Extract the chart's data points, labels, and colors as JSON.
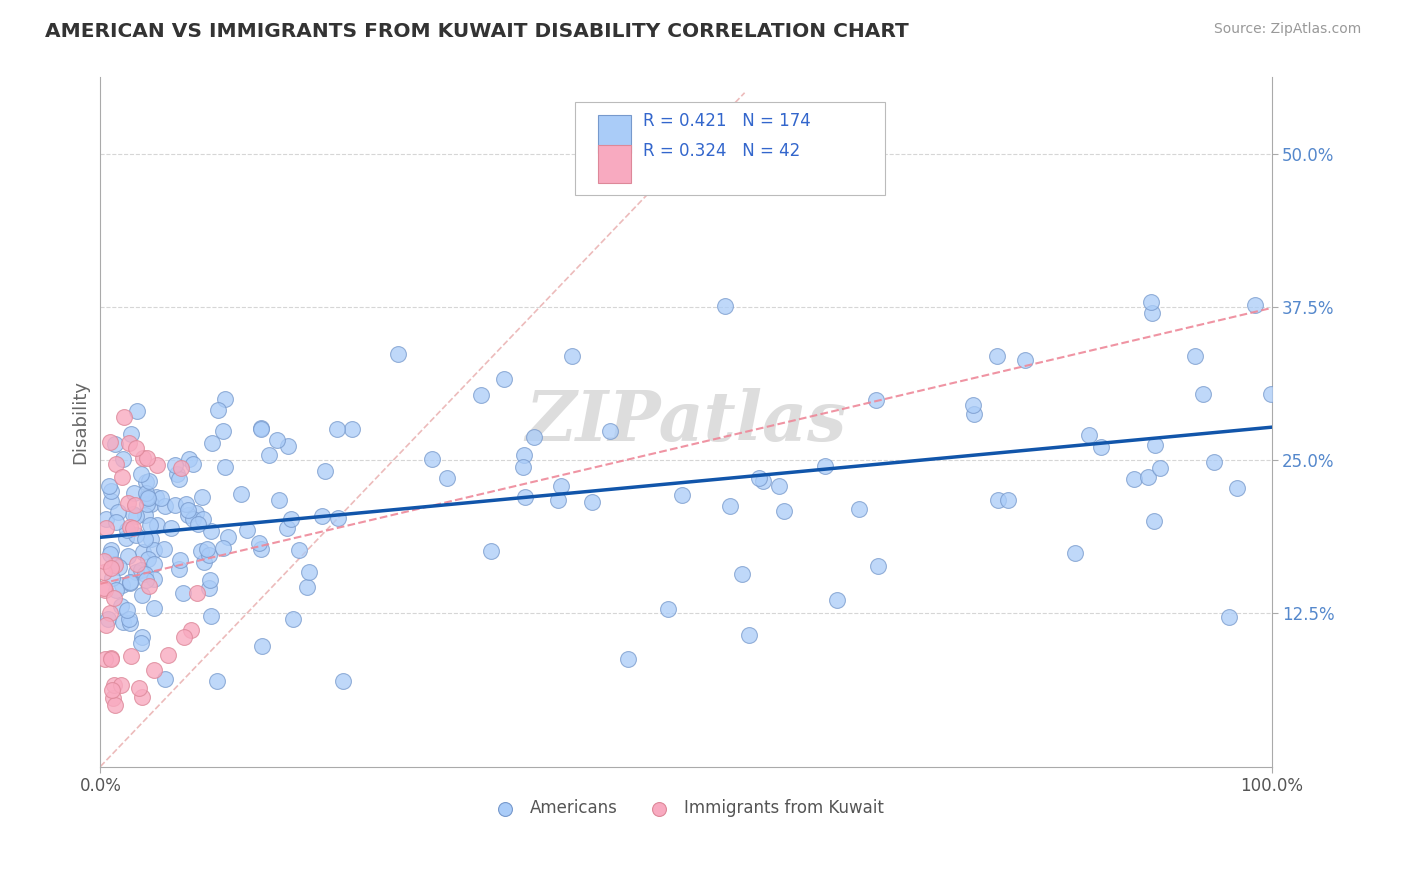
{
  "title": "AMERICAN VS IMMIGRANTS FROM KUWAIT DISABILITY CORRELATION CHART",
  "source": "Source: ZipAtlas.com",
  "ylabel": "Disability",
  "watermark": "ZIPatlas",
  "xlim": [
    0,
    1.0
  ],
  "ylim": [
    0,
    0.5625
  ],
  "ytick_positions": [
    0.125,
    0.25,
    0.375,
    0.5
  ],
  "ytick_labels": [
    "12.5%",
    "25.0%",
    "37.5%",
    "50.0%"
  ],
  "americans_R": 0.421,
  "americans_N": 174,
  "kuwait_R": 0.324,
  "kuwait_N": 42,
  "americans_color": "#aaccf8",
  "americans_edge": "#7799cc",
  "kuwait_color": "#f8aac0",
  "kuwait_edge": "#dd8899",
  "regression_blue_color": "#1155aa",
  "regression_pink_color": "#ee8899",
  "diag_color": "#ddaaaa",
  "background_color": "#ffffff",
  "grid_color": "#cccccc",
  "legend_color": "#3366cc",
  "ytick_color": "#5588cc"
}
